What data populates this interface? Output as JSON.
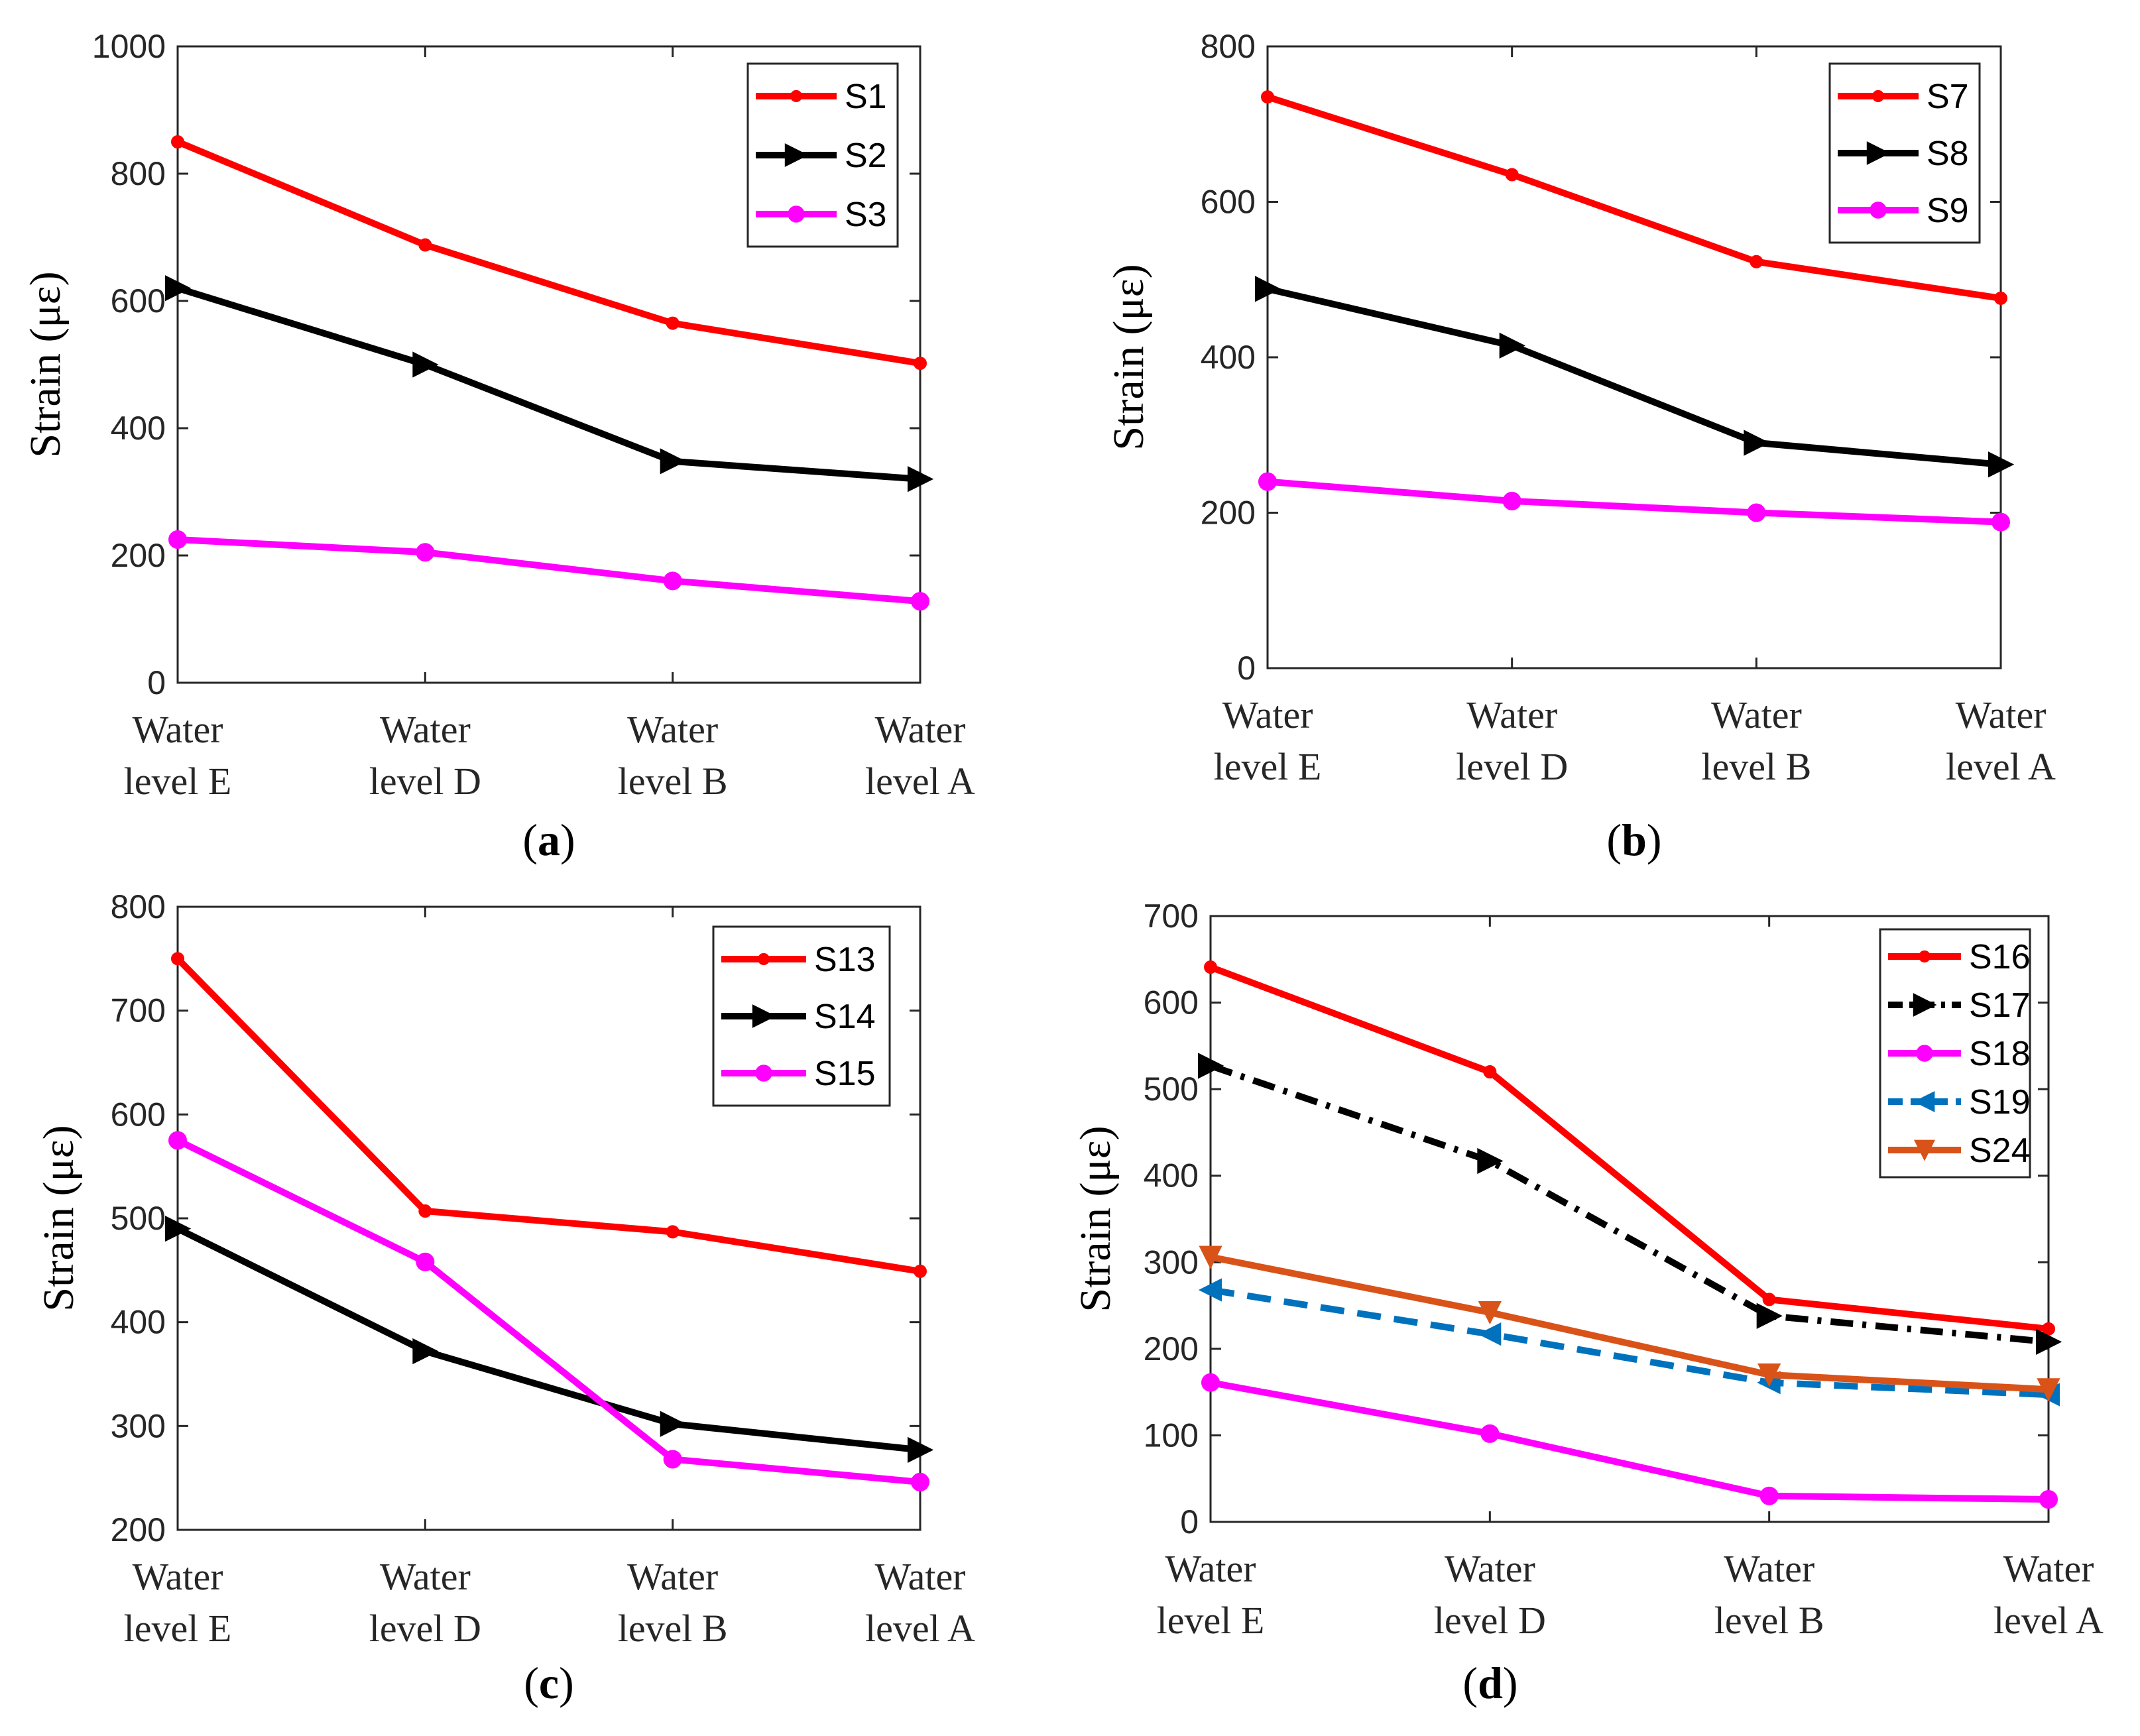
{
  "figure": {
    "x_tick_lines": [
      [
        "Water",
        "level E"
      ],
      [
        "Water",
        "level D"
      ],
      [
        "Water",
        "level B"
      ],
      [
        "Water",
        "level A"
      ]
    ]
  },
  "chart_data": [
    {
      "panel": "a",
      "type": "line",
      "panel_label": {
        "open": "(",
        "letter": "a",
        "close": ")"
      },
      "ylabel": "Strain (με)",
      "categories": [
        "Water level E",
        "Water level D",
        "Water level B",
        "Water level A"
      ],
      "ylim": [
        0,
        1000
      ],
      "yticks": [
        0,
        200,
        400,
        600,
        800,
        1000
      ],
      "legend_position": "top-right",
      "series": [
        {
          "name": "S1",
          "values": [
            850,
            688,
            565,
            502
          ],
          "color": "#ff0000",
          "marker": "dot",
          "dash": "solid"
        },
        {
          "name": "S2",
          "values": [
            620,
            500,
            348,
            320
          ],
          "color": "#000000",
          "marker": "triangle-right",
          "dash": "solid"
        },
        {
          "name": "S3",
          "values": [
            225,
            205,
            160,
            128
          ],
          "color": "#ff00ff",
          "marker": "circle",
          "dash": "solid"
        }
      ]
    },
    {
      "panel": "b",
      "type": "line",
      "panel_label": {
        "open": "(",
        "letter": "b",
        "close": ")"
      },
      "ylabel": "Strain (με)",
      "categories": [
        "Water level E",
        "Water level D",
        "Water level B",
        "Water level A"
      ],
      "ylim": [
        0,
        800
      ],
      "yticks": [
        0,
        200,
        400,
        600,
        800
      ],
      "legend_position": "top-right",
      "series": [
        {
          "name": "S7",
          "values": [
            735,
            635,
            523,
            476
          ],
          "color": "#ff0000",
          "marker": "dot",
          "dash": "solid"
        },
        {
          "name": "S8",
          "values": [
            488,
            415,
            290,
            262
          ],
          "color": "#000000",
          "marker": "triangle-right",
          "dash": "solid"
        },
        {
          "name": "S9",
          "values": [
            240,
            215,
            200,
            188
          ],
          "color": "#ff00ff",
          "marker": "circle",
          "dash": "solid"
        }
      ]
    },
    {
      "panel": "c",
      "type": "line",
      "panel_label": {
        "open": "(",
        "letter": "c",
        "close": ")"
      },
      "ylabel": "Strain (με)",
      "categories": [
        "Water level E",
        "Water level D",
        "Water level B",
        "Water level A"
      ],
      "ylim": [
        200,
        800
      ],
      "yticks": [
        200,
        300,
        400,
        500,
        600,
        700,
        800
      ],
      "legend_position": "top-right",
      "series": [
        {
          "name": "S13",
          "values": [
            750,
            507,
            487,
            449
          ],
          "color": "#ff0000",
          "marker": "dot",
          "dash": "solid"
        },
        {
          "name": "S14",
          "values": [
            490,
            372,
            302,
            277
          ],
          "color": "#000000",
          "marker": "triangle-right",
          "dash": "solid"
        },
        {
          "name": "S15",
          "values": [
            575,
            458,
            268,
            246
          ],
          "color": "#ff00ff",
          "marker": "circle",
          "dash": "solid"
        }
      ]
    },
    {
      "panel": "d",
      "type": "line",
      "panel_label": {
        "open": "(",
        "letter": "d",
        "close": ")"
      },
      "ylabel": "Strain (με)",
      "categories": [
        "Water level E",
        "Water level D",
        "Water level B",
        "Water level A"
      ],
      "ylim": [
        0,
        700
      ],
      "yticks": [
        0,
        100,
        200,
        300,
        400,
        500,
        600,
        700
      ],
      "legend_position": "top-right",
      "series": [
        {
          "name": "S16",
          "values": [
            641,
            520,
            257,
            223
          ],
          "color": "#ff0000",
          "marker": "dot",
          "dash": "solid"
        },
        {
          "name": "S17",
          "values": [
            527,
            417,
            238,
            208
          ],
          "color": "#000000",
          "marker": "triangle-right",
          "dash": "dashdot"
        },
        {
          "name": "S18",
          "values": [
            161,
            102,
            30,
            26
          ],
          "color": "#ff00ff",
          "marker": "circle",
          "dash": "solid"
        },
        {
          "name": "S19",
          "values": [
            268,
            217,
            161,
            147
          ],
          "color": "#0072bd",
          "marker": "triangle-left",
          "dash": "dashed"
        },
        {
          "name": "S24",
          "values": [
            306,
            242,
            170,
            153
          ],
          "color": "#d95319",
          "marker": "triangle-down",
          "dash": "solid"
        }
      ]
    }
  ]
}
